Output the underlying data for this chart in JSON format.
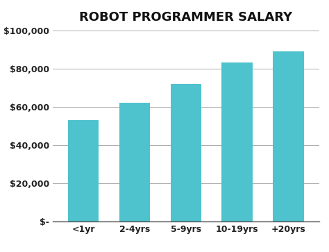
{
  "title": "ROBOT PROGRAMMER SALARY",
  "categories": [
    "<1yr",
    "2-4yrs",
    "5-9yrs",
    "10-19yrs",
    "+20yrs"
  ],
  "values": [
    53000,
    62000,
    72000,
    83000,
    89000
  ],
  "bar_color": "#4EC3CE",
  "ylim": [
    0,
    100000
  ],
  "yticks": [
    0,
    20000,
    40000,
    60000,
    80000,
    100000
  ],
  "ytick_labels": [
    "$-",
    "$20,000",
    "$40,000",
    "$60,000",
    "$80,000",
    "$100,000"
  ],
  "background_color": "#ffffff",
  "title_fontsize": 13,
  "tick_fontsize": 9,
  "bar_width": 0.6,
  "grid_color": "#aaaaaa",
  "grid_linewidth": 0.7,
  "spine_color": "#555555"
}
